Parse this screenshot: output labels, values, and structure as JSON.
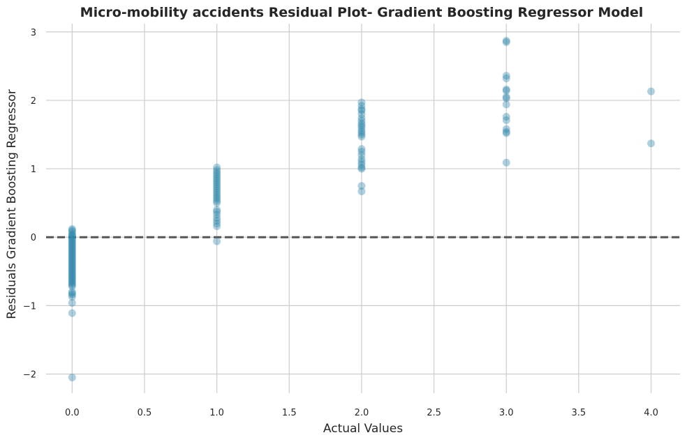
{
  "chart_data": {
    "type": "scatter",
    "title": "Micro-mobility accidents Residual Plot- Gradient Boosting Regressor Model",
    "xlabel": "Actual Values",
    "ylabel": "Residuals Gradient Boosting Regressor",
    "xlim": [
      -0.18,
      4.2
    ],
    "ylim": [
      -2.28,
      3.12
    ],
    "x_ticks": [
      0.0,
      0.5,
      1.0,
      1.5,
      2.0,
      2.5,
      3.0,
      3.5,
      4.0
    ],
    "x_tick_labels": [
      "0.0",
      "0.5",
      "1.0",
      "1.5",
      "2.0",
      "2.5",
      "3.0",
      "3.5",
      "4.0"
    ],
    "y_ticks": [
      -2,
      -1,
      0,
      1,
      2,
      3
    ],
    "y_tick_labels": [
      "−2",
      "−1",
      "0",
      "1",
      "2",
      "3"
    ],
    "grid": true,
    "reference_line": {
      "y": 0,
      "style": "dashed",
      "color": "#555555"
    },
    "point_color": "#2e86ab",
    "series": [
      {
        "points": [
          [
            0,
            0.12
          ],
          [
            0,
            0.1
          ],
          [
            0,
            0.08
          ],
          [
            0,
            0.05
          ],
          [
            0,
            0.03
          ],
          [
            0,
            0.02
          ],
          [
            0,
            0.0
          ],
          [
            0,
            -0.02
          ],
          [
            0,
            -0.04
          ],
          [
            0,
            -0.06
          ],
          [
            0,
            -0.08
          ],
          [
            0,
            -0.1
          ],
          [
            0,
            -0.12
          ],
          [
            0,
            -0.14
          ],
          [
            0,
            -0.16
          ],
          [
            0,
            -0.18
          ],
          [
            0,
            -0.2
          ],
          [
            0,
            -0.22
          ],
          [
            0,
            -0.24
          ],
          [
            0,
            -0.26
          ],
          [
            0,
            -0.28
          ],
          [
            0,
            -0.3
          ],
          [
            0,
            -0.32
          ],
          [
            0,
            -0.34
          ],
          [
            0,
            -0.36
          ],
          [
            0,
            -0.38
          ],
          [
            0,
            -0.4
          ],
          [
            0,
            -0.42
          ],
          [
            0,
            -0.44
          ],
          [
            0,
            -0.46
          ],
          [
            0,
            -0.48
          ],
          [
            0,
            -0.5
          ],
          [
            0,
            -0.52
          ],
          [
            0,
            -0.54
          ],
          [
            0,
            -0.56
          ],
          [
            0,
            -0.58
          ],
          [
            0,
            -0.6
          ],
          [
            0,
            -0.62
          ],
          [
            0,
            -0.64
          ],
          [
            0,
            -0.66
          ],
          [
            0,
            -0.68
          ],
          [
            0,
            -0.7
          ],
          [
            0,
            -0.72
          ],
          [
            0,
            -0.8
          ],
          [
            0,
            -0.82
          ],
          [
            0,
            -0.84
          ],
          [
            0,
            -0.87
          ],
          [
            0,
            -0.96
          ],
          [
            0,
            -1.11
          ],
          [
            0,
            -2.05
          ],
          [
            1,
            1.02
          ],
          [
            1,
            0.98
          ],
          [
            1,
            0.95
          ],
          [
            1,
            0.92
          ],
          [
            1,
            0.89
          ],
          [
            1,
            0.86
          ],
          [
            1,
            0.83
          ],
          [
            1,
            0.8
          ],
          [
            1,
            0.77
          ],
          [
            1,
            0.74
          ],
          [
            1,
            0.71
          ],
          [
            1,
            0.68
          ],
          [
            1,
            0.65
          ],
          [
            1,
            0.62
          ],
          [
            1,
            0.59
          ],
          [
            1,
            0.56
          ],
          [
            1,
            0.53
          ],
          [
            1,
            0.5
          ],
          [
            1,
            0.4
          ],
          [
            1,
            0.37
          ],
          [
            1,
            0.33
          ],
          [
            1,
            0.28
          ],
          [
            1,
            0.24
          ],
          [
            1,
            0.2
          ],
          [
            1,
            0.16
          ],
          [
            1,
            -0.06
          ],
          [
            2,
            1.97
          ],
          [
            2,
            1.92
          ],
          [
            2,
            1.87
          ],
          [
            2,
            1.85
          ],
          [
            2,
            1.8
          ],
          [
            2,
            1.74
          ],
          [
            2,
            1.7
          ],
          [
            2,
            1.66
          ],
          [
            2,
            1.63
          ],
          [
            2,
            1.6
          ],
          [
            2,
            1.56
          ],
          [
            2,
            1.53
          ],
          [
            2,
            1.5
          ],
          [
            2,
            1.47
          ],
          [
            2,
            1.29
          ],
          [
            2,
            1.25
          ],
          [
            2,
            1.2
          ],
          [
            2,
            1.14
          ],
          [
            2,
            1.1
          ],
          [
            2,
            1.06
          ],
          [
            2,
            1.02
          ],
          [
            2,
            1.0
          ],
          [
            2,
            0.75
          ],
          [
            2,
            0.67
          ],
          [
            3,
            2.87
          ],
          [
            3,
            2.85
          ],
          [
            3,
            2.36
          ],
          [
            3,
            2.32
          ],
          [
            3,
            2.16
          ],
          [
            3,
            2.14
          ],
          [
            3,
            2.05
          ],
          [
            3,
            2.03
          ],
          [
            3,
            1.94
          ],
          [
            3,
            1.76
          ],
          [
            3,
            1.71
          ],
          [
            3,
            1.58
          ],
          [
            3,
            1.54
          ],
          [
            3,
            1.52
          ],
          [
            3,
            1.09
          ],
          [
            4,
            2.13
          ],
          [
            4,
            1.37
          ]
        ]
      }
    ]
  }
}
